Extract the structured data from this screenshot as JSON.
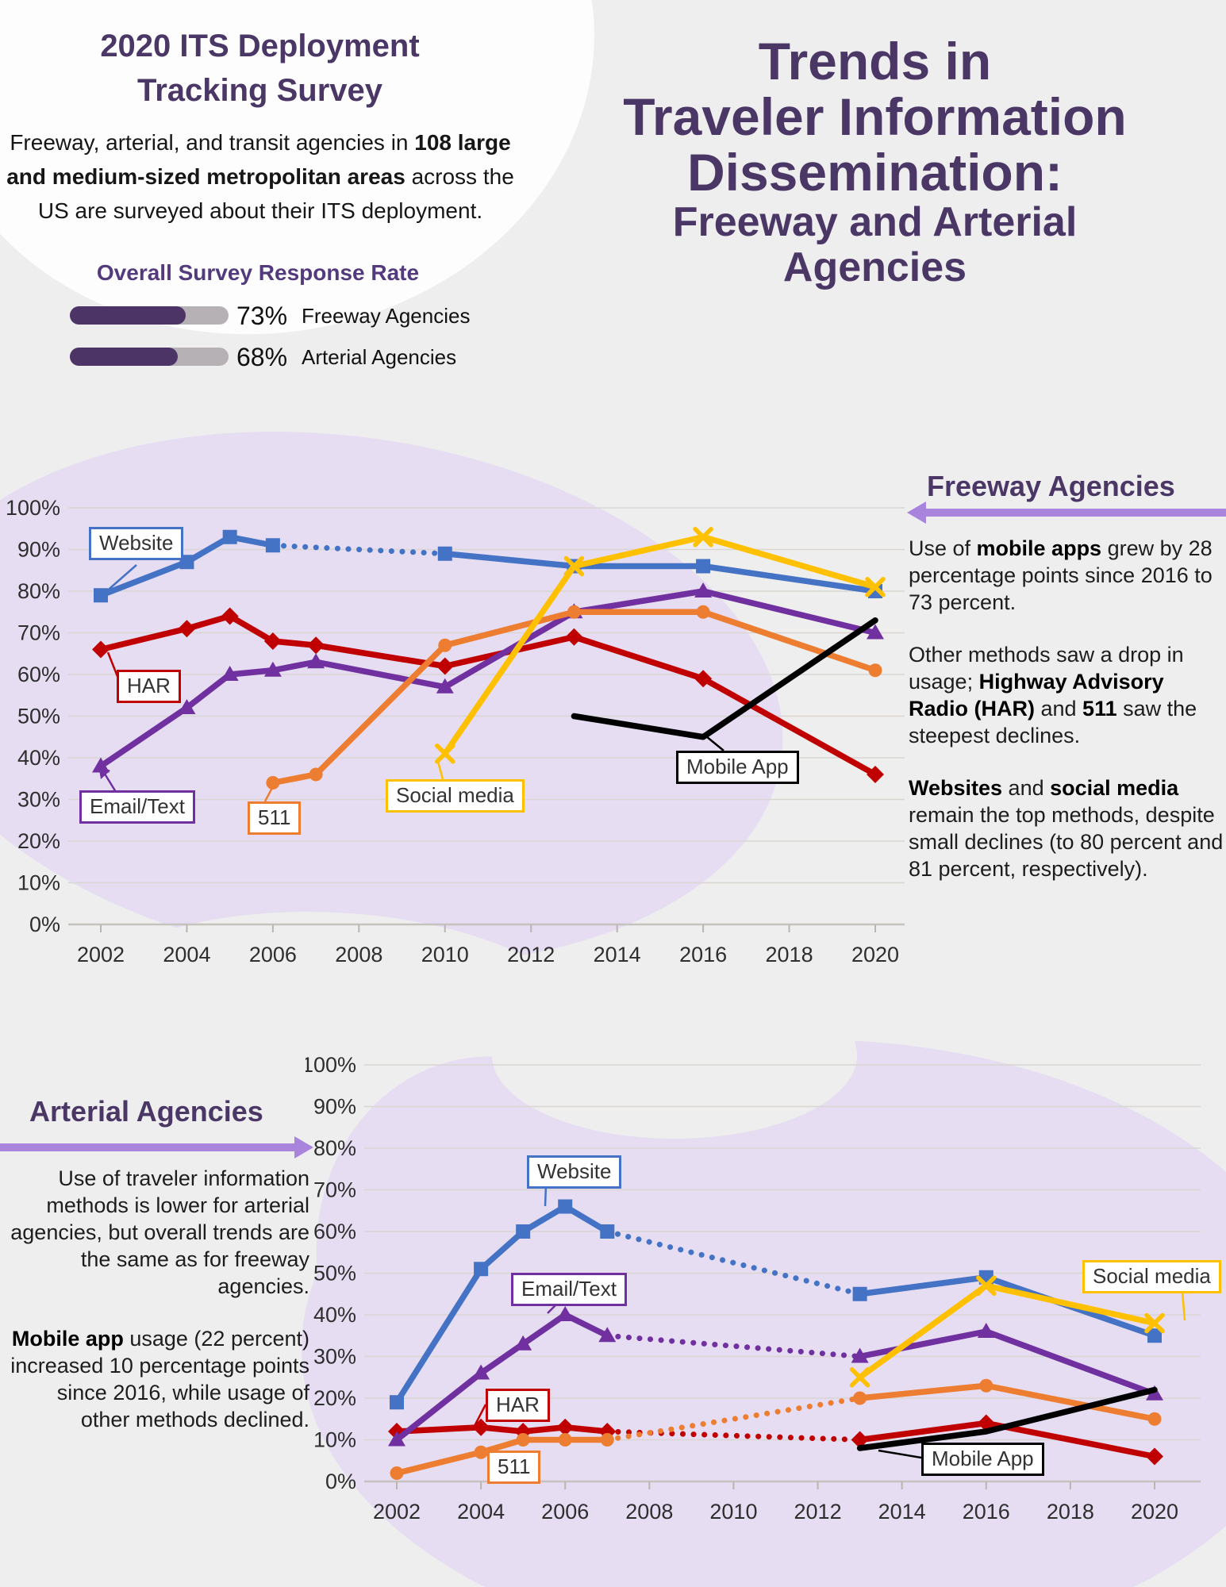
{
  "page": {
    "bg": "#efeeee",
    "accent": "#4a3766",
    "arrow_color": "#a884dd",
    "lavender": "#e6ddf3"
  },
  "header": {
    "title_line1": "2020 ITS Deployment",
    "title_line2": "Tracking Survey",
    "intro_runs": [
      {
        "t": "Freeway, arterial, and transit agencies in "
      },
      {
        "t": "108 large and medium-sized metropolitan areas",
        "b": true
      },
      {
        "t": " across the US are surveyed about their ITS deployment."
      }
    ]
  },
  "response_rate": {
    "heading": "Overall Survey Response Rate",
    "bars": [
      {
        "percent": "73%",
        "value": 73,
        "label": "Freeway Agencies"
      },
      {
        "percent": "68%",
        "value": 68,
        "label": "Arterial Agencies"
      }
    ]
  },
  "main_title": {
    "line1": "Trends in",
    "line2": "Traveler Information",
    "line3": "Dissemination:",
    "sub_line1": "Freeway and Arterial",
    "sub_line2": "Agencies"
  },
  "freeway_panel": {
    "heading": "Freeway Agencies",
    "p1": [
      {
        "t": "Use of "
      },
      {
        "t": "mobile apps",
        "b": true
      },
      {
        "t": " grew by 28 percentage points since 2016 to 73 percent."
      }
    ],
    "p2": [
      {
        "t": "Other methods saw a drop in usage; "
      },
      {
        "t": "Highway Advisory Radio (HAR)",
        "b": true
      },
      {
        "t": " and "
      },
      {
        "t": "511",
        "b": true
      },
      {
        "t": " saw the steepest declines."
      }
    ],
    "p3": [
      {
        "t": "Websites",
        "b": true
      },
      {
        "t": " and "
      },
      {
        "t": "social media",
        "b": true
      },
      {
        "t": " remain the top methods, despite small declines (to 80 percent and 81 percent, respectively)."
      }
    ]
  },
  "arterial_panel": {
    "heading": "Arterial Agencies",
    "p1": [
      {
        "t": "Use of traveler information methods is lower for arterial agencies, but overall trends are the same as for freeway agencies."
      }
    ],
    "p2": [
      {
        "t": "Mobile app",
        "b": true
      },
      {
        "t": " usage (22 percent) increased 10 percentage points since 2016, while usage of other methods declined."
      }
    ]
  },
  "chart_data": [
    {
      "id": "freeway",
      "type": "line",
      "title": "Freeway Agencies",
      "xlabel": "",
      "ylabel": "",
      "ylim": [
        0,
        100
      ],
      "y_tick_step": 10,
      "grid": true,
      "x_tick_labels": [
        "2002",
        "2004",
        "2006",
        "2008",
        "2010",
        "2012",
        "2014",
        "2016",
        "2018",
        "2020"
      ],
      "survey_years": [
        2002,
        2004,
        2005,
        2006,
        2007,
        2010,
        2013,
        2016,
        2020
      ],
      "series": [
        {
          "name": "Website",
          "color": "#4472c4",
          "marker": "square",
          "dotted_between": [
            [
              2006,
              2010
            ]
          ],
          "points": [
            [
              2002,
              79
            ],
            [
              2004,
              87
            ],
            [
              2005,
              93
            ],
            [
              2006,
              91
            ],
            [
              2010,
              89
            ],
            [
              2013,
              86
            ],
            [
              2016,
              86
            ],
            [
              2020,
              80
            ]
          ]
        },
        {
          "name": "HAR",
          "color": "#c00000",
          "marker": "diamond",
          "dotted_between": [],
          "points": [
            [
              2002,
              66
            ],
            [
              2004,
              71
            ],
            [
              2005,
              74
            ],
            [
              2006,
              68
            ],
            [
              2007,
              67
            ],
            [
              2010,
              62
            ],
            [
              2013,
              69
            ],
            [
              2016,
              59
            ],
            [
              2020,
              36
            ]
          ]
        },
        {
          "name": "Email/Text",
          "color": "#7030a0",
          "marker": "triangle",
          "dotted_between": [],
          "points": [
            [
              2002,
              38
            ],
            [
              2004,
              52
            ],
            [
              2005,
              60
            ],
            [
              2006,
              61
            ],
            [
              2007,
              63
            ],
            [
              2010,
              57
            ],
            [
              2013,
              75
            ],
            [
              2016,
              80
            ],
            [
              2020,
              70
            ]
          ]
        },
        {
          "name": "511",
          "color": "#ed7d31",
          "marker": "circle",
          "dotted_between": [],
          "points": [
            [
              2006,
              34
            ],
            [
              2007,
              36
            ],
            [
              2010,
              67
            ],
            [
              2013,
              75
            ],
            [
              2016,
              75
            ],
            [
              2020,
              61
            ]
          ]
        },
        {
          "name": "Social media",
          "color": "#ffc000",
          "marker": "x",
          "dotted_between": [],
          "points": [
            [
              2010,
              41
            ],
            [
              2013,
              86
            ],
            [
              2016,
              93
            ],
            [
              2020,
              81
            ]
          ]
        },
        {
          "name": "Mobile App",
          "color": "#000000",
          "marker": "none",
          "dotted_between": [],
          "points": [
            [
              2013,
              50
            ],
            [
              2016,
              45
            ],
            [
              2020,
              73
            ]
          ]
        }
      ]
    },
    {
      "id": "arterial",
      "type": "line",
      "title": "Arterial Agencies",
      "xlabel": "",
      "ylabel": "",
      "ylim": [
        0,
        100
      ],
      "y_tick_step": 10,
      "grid": true,
      "x_tick_labels": [
        "2002",
        "2004",
        "2006",
        "2008",
        "2010",
        "2012",
        "2014",
        "2016",
        "2018",
        "2020"
      ],
      "survey_years": [
        2002,
        2004,
        2005,
        2006,
        2007,
        2013,
        2016,
        2020
      ],
      "series": [
        {
          "name": "Website",
          "color": "#4472c4",
          "marker": "square",
          "dotted_between": [
            [
              2007,
              2013
            ]
          ],
          "points": [
            [
              2002,
              19
            ],
            [
              2004,
              51
            ],
            [
              2005,
              60
            ],
            [
              2006,
              66
            ],
            [
              2007,
              60
            ],
            [
              2013,
              45
            ],
            [
              2016,
              49
            ],
            [
              2020,
              35
            ]
          ]
        },
        {
          "name": "HAR",
          "color": "#c00000",
          "marker": "diamond",
          "dotted_between": [
            [
              2007,
              2013
            ]
          ],
          "points": [
            [
              2002,
              12
            ],
            [
              2004,
              13
            ],
            [
              2005,
              12
            ],
            [
              2006,
              13
            ],
            [
              2007,
              12
            ],
            [
              2013,
              10
            ],
            [
              2016,
              14
            ],
            [
              2020,
              6
            ]
          ]
        },
        {
          "name": "Email/Text",
          "color": "#7030a0",
          "marker": "triangle",
          "dotted_between": [
            [
              2007,
              2013
            ]
          ],
          "points": [
            [
              2002,
              10
            ],
            [
              2004,
              26
            ],
            [
              2005,
              33
            ],
            [
              2006,
              40
            ],
            [
              2007,
              35
            ],
            [
              2013,
              30
            ],
            [
              2016,
              36
            ],
            [
              2020,
              21
            ]
          ]
        },
        {
          "name": "511",
          "color": "#ed7d31",
          "marker": "circle",
          "dotted_between": [
            [
              2007,
              2013
            ]
          ],
          "points": [
            [
              2002,
              2
            ],
            [
              2004,
              7
            ],
            [
              2005,
              10
            ],
            [
              2006,
              10
            ],
            [
              2007,
              10
            ],
            [
              2013,
              20
            ],
            [
              2016,
              23
            ],
            [
              2020,
              15
            ]
          ]
        },
        {
          "name": "Social media",
          "color": "#ffc000",
          "marker": "x",
          "dotted_between": [],
          "points": [
            [
              2013,
              25
            ],
            [
              2016,
              47
            ],
            [
              2020,
              38
            ]
          ]
        },
        {
          "name": "Mobile App",
          "color": "#000000",
          "marker": "none",
          "dotted_between": [],
          "points": [
            [
              2013,
              8
            ],
            [
              2016,
              12
            ],
            [
              2020,
              22
            ]
          ]
        }
      ]
    }
  ]
}
